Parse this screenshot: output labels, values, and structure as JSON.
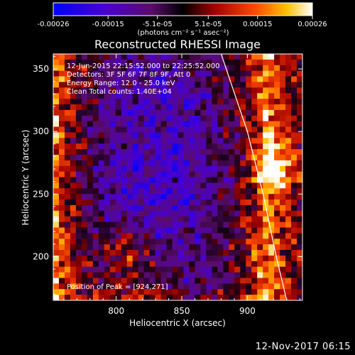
{
  "chart_data": {
    "type": "heatmap",
    "title": "Reconstructed RHESSI Image",
    "xlabel": "Heliocentric X (arcsec)",
    "ylabel": "Heliocentric Y (arcsec)",
    "xlim": [
      752,
      942
    ],
    "ylim": [
      165,
      362
    ],
    "x_ticks": [
      800,
      850,
      900
    ],
    "y_ticks": [
      200,
      250,
      300,
      350
    ],
    "colorbar": {
      "ticks": [
        "-0.00026",
        "-0.00015",
        "-5.1e-05",
        "5.1e-05",
        "0.00015",
        "0.00026"
      ],
      "tick_values": [
        -0.00026,
        -0.00015,
        -5.1e-05,
        5.1e-05,
        0.00015,
        0.00026
      ],
      "range": [
        -0.00026,
        0.00026
      ],
      "unit_label": "(photons cm⁻² s⁻¹ asec⁻²)"
    },
    "annotations": {
      "time_range": "12-Jun-2015 22:15:52.000 to 22:25:52.000",
      "detectors": "Detectors: 3F 5F 6F 7F 8F 9F, Att 0",
      "energy": "Energy Range: 12.0 - 25.0 keV",
      "method": "Clean    Total counts: 1.40E+04",
      "peak": "Position of Peak = [924,271]"
    },
    "limb": [
      [
        880,
        362
      ],
      [
        900,
        300
      ],
      [
        912,
        250
      ],
      [
        922,
        200
      ],
      [
        930,
        165
      ]
    ],
    "peak_position": [
      924,
      271
    ],
    "colors": {
      "low": "#0000ff",
      "mid_low": "#6a1bd6",
      "mid": "#000000",
      "mid_high": "#d62000",
      "high": "#ffffff"
    }
  },
  "footer": {
    "date": "12-Nov-2017 06:15"
  }
}
